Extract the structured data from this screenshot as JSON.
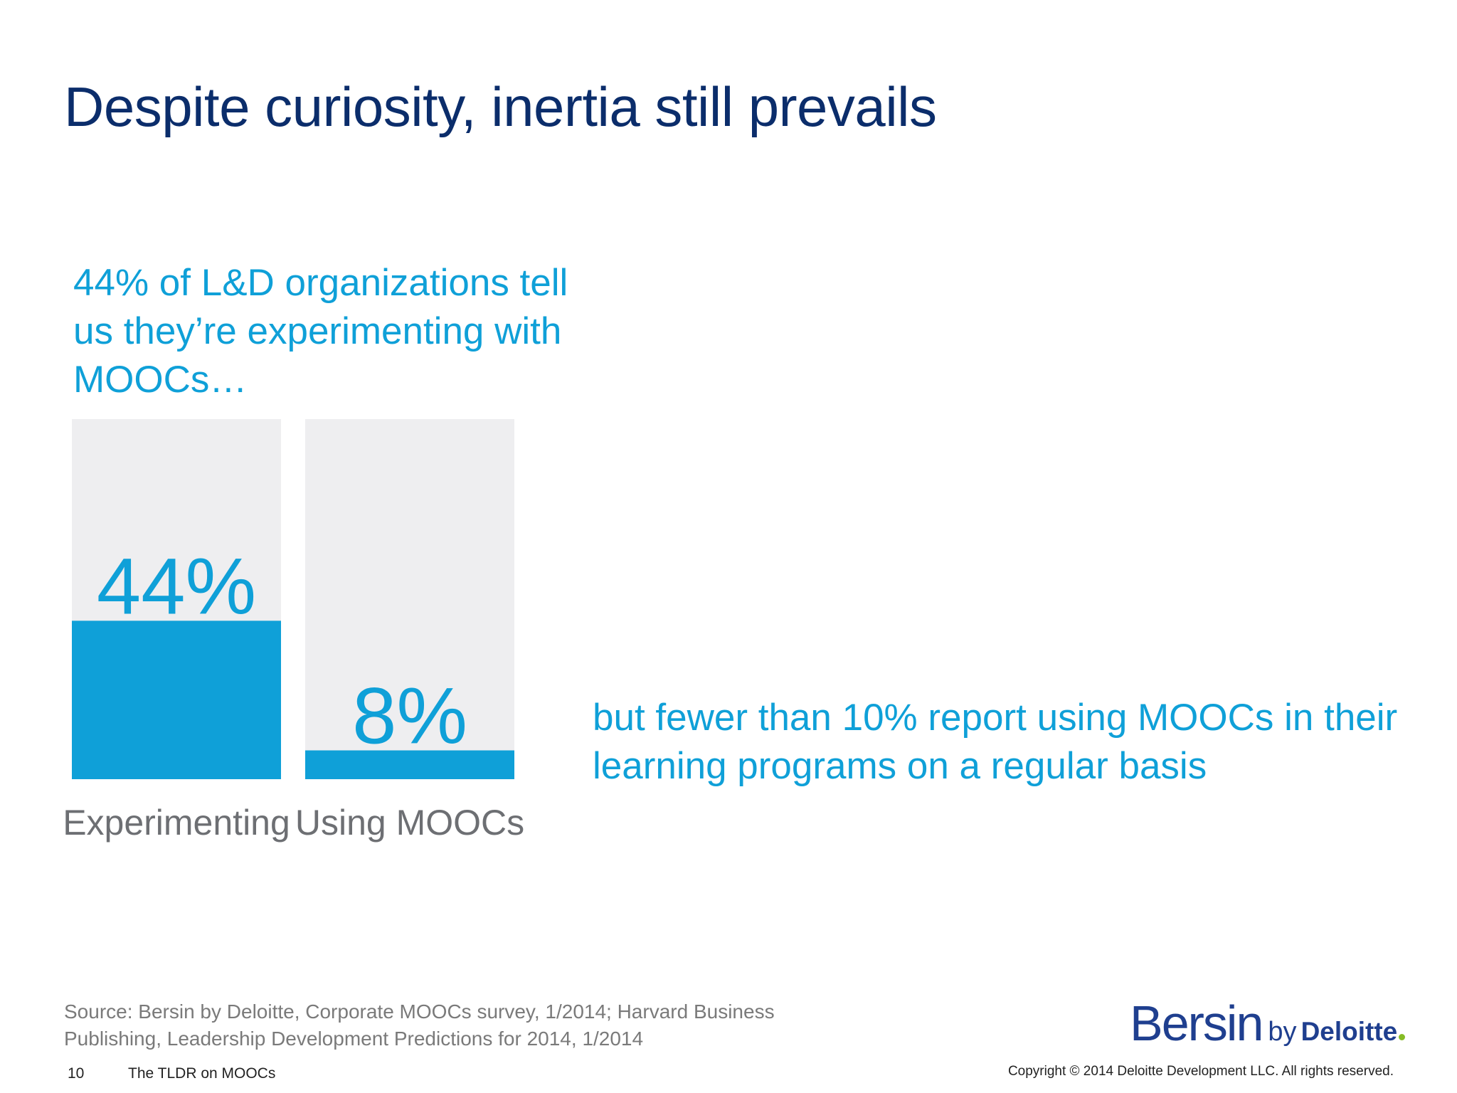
{
  "slide": {
    "title": "Despite curiosity, inertia still prevails",
    "callout_left": "44% of L&D organizations tell us they’re experimenting with MOOCs…",
    "callout_right": "but fewer than 10% report using MOOCs in their learning programs on a regular basis",
    "source": "Source: Bersin by Deloitte, Corporate MOOCs survey, 1/2014; Harvard Business Publishing, Leadership Development Predictions for 2014, 1/2014",
    "page_number": "10",
    "deck_name": "The TLDR on MOOCs",
    "copyright": "Copyright © 2014 Deloitte Development LLC. All rights reserved."
  },
  "logo": {
    "bersin": "Bersin",
    "by": "by",
    "deloitte": "Deloitte"
  },
  "colors": {
    "title": "#0b2d6b",
    "accent": "#0fa0d8",
    "bar_background": "#eeeef0",
    "category_label": "#6d6f73",
    "logo_green_dot": "#86bc25"
  },
  "chart_data": {
    "type": "bar",
    "title": "",
    "categories": [
      "Experimenting",
      "Using MOOCs"
    ],
    "values": [
      44,
      8
    ],
    "data_labels": [
      "44%",
      "8%"
    ],
    "ylim": [
      0,
      100
    ],
    "unit": "%",
    "grid": false,
    "legend": "none"
  }
}
